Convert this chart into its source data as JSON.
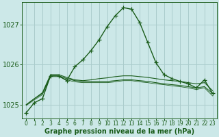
{
  "title": "Graphe pression niveau de la mer (hPa)",
  "x_labels": [
    "0",
    "1",
    "2",
    "3",
    "4",
    "5",
    "6",
    "7",
    "8",
    "9",
    "10",
    "11",
    "12",
    "13",
    "14",
    "15",
    "16",
    "17",
    "18",
    "19",
    "20",
    "21",
    "22",
    "23"
  ],
  "hours": [
    0,
    1,
    2,
    3,
    4,
    5,
    6,
    7,
    8,
    9,
    10,
    11,
    12,
    13,
    14,
    15,
    16,
    17,
    18,
    19,
    20,
    21,
    22,
    23
  ],
  "main_line": [
    1024.8,
    1025.05,
    1025.15,
    1025.72,
    1025.72,
    1025.6,
    1025.95,
    1026.12,
    1026.35,
    1026.62,
    1026.95,
    1027.22,
    1027.42,
    1027.38,
    1027.05,
    1026.55,
    1026.05,
    1025.75,
    1025.65,
    1025.58,
    1025.52,
    1025.42,
    1025.62,
    1025.28
  ],
  "line2": [
    1025.0,
    1025.15,
    1025.3,
    1025.75,
    1025.75,
    1025.68,
    1025.62,
    1025.6,
    1025.62,
    1025.65,
    1025.67,
    1025.7,
    1025.72,
    1025.72,
    1025.7,
    1025.68,
    1025.65,
    1025.62,
    1025.6,
    1025.58,
    1025.55,
    1025.52,
    1025.55,
    1025.35
  ],
  "line3": [
    1025.0,
    1025.15,
    1025.28,
    1025.72,
    1025.72,
    1025.65,
    1025.6,
    1025.58,
    1025.58,
    1025.58,
    1025.58,
    1025.6,
    1025.62,
    1025.62,
    1025.6,
    1025.58,
    1025.55,
    1025.52,
    1025.5,
    1025.48,
    1025.45,
    1025.42,
    1025.45,
    1025.28
  ],
  "line4": [
    1024.98,
    1025.12,
    1025.25,
    1025.7,
    1025.7,
    1025.62,
    1025.57,
    1025.55,
    1025.55,
    1025.55,
    1025.55,
    1025.57,
    1025.6,
    1025.6,
    1025.57,
    1025.55,
    1025.52,
    1025.5,
    1025.47,
    1025.45,
    1025.42,
    1025.38,
    1025.42,
    1025.22
  ],
  "ylim": [
    1024.65,
    1027.55
  ],
  "yticks": [
    1025,
    1026,
    1027
  ],
  "bg_color": "#cce8e8",
  "grid_color": "#aacccc",
  "line_color": "#1a5c1a",
  "marker": "+",
  "markersize": 4,
  "lw_main": 1.0,
  "lw_sec": 0.8,
  "xlabel_fontsize": 5.5,
  "ylabel_fontsize": 7,
  "title_fontsize": 7
}
